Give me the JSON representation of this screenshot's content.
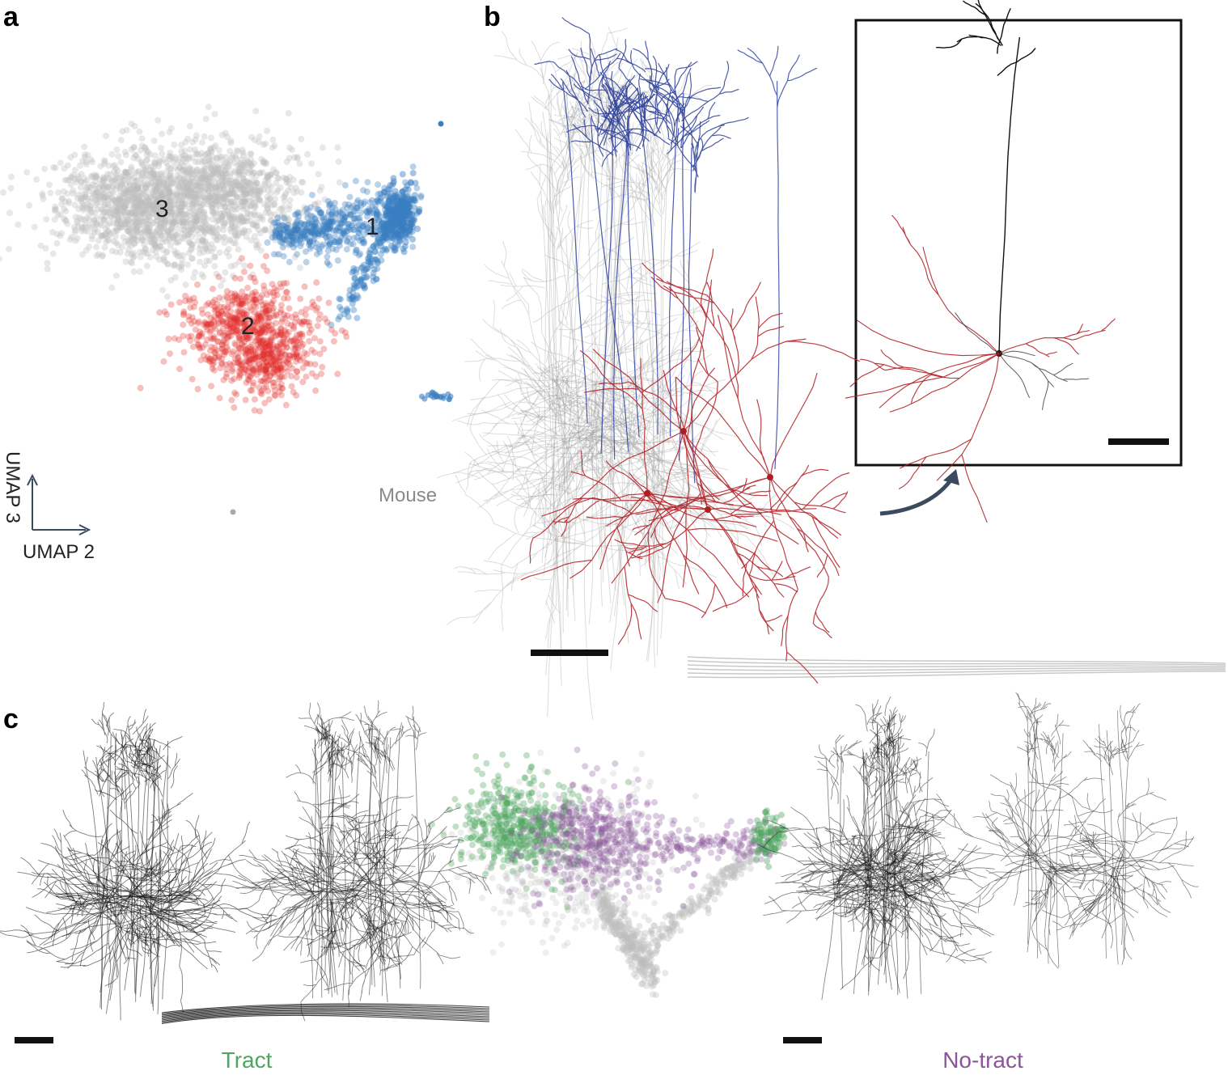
{
  "panels": [
    {
      "label": "a"
    },
    {
      "label": "b"
    },
    {
      "label": "c"
    }
  ],
  "panel_a": {
    "clusters": [
      "3",
      "1",
      "2"
    ],
    "x_axis": "UMAP 2",
    "y_axis": "UMAP 3",
    "species": "Mouse"
  },
  "panel_c": {
    "left_label": "Tract",
    "right_label": "No-tract"
  }
}
